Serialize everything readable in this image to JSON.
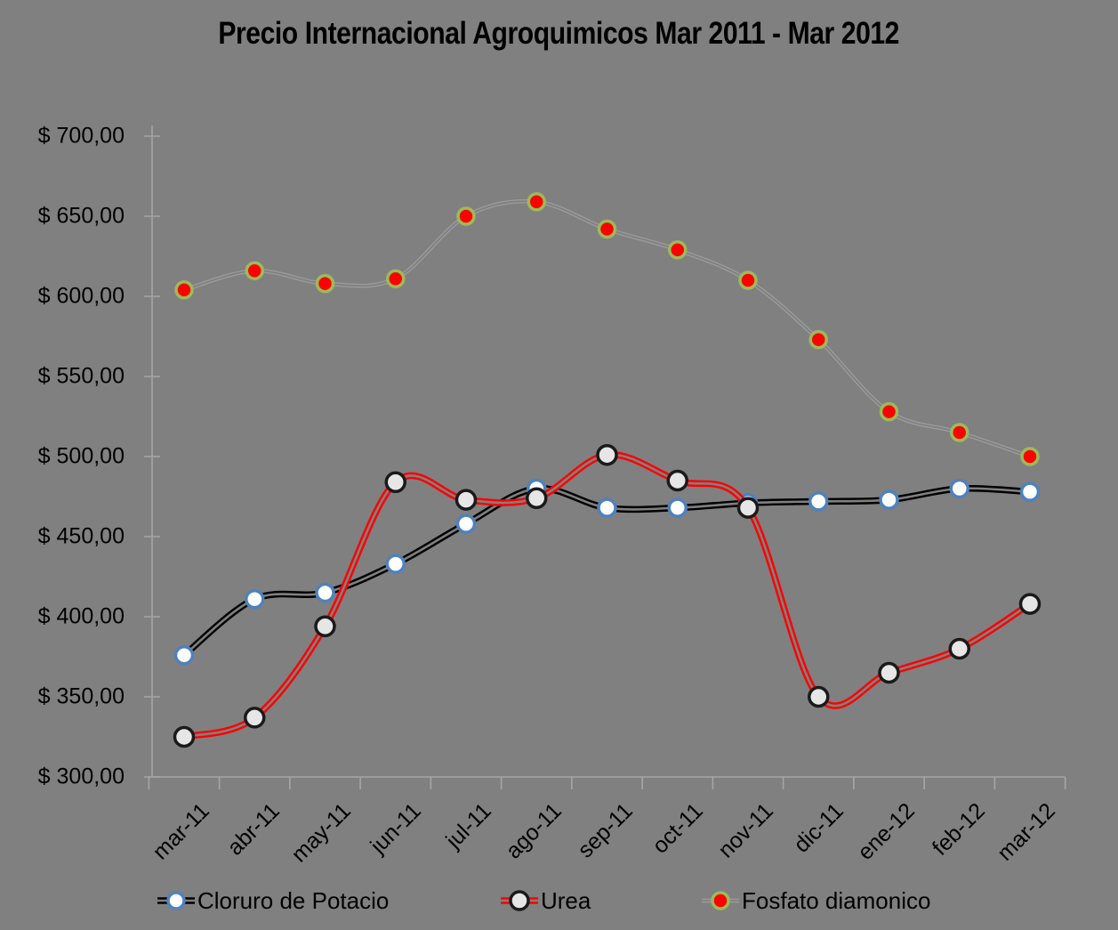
{
  "title": "Precio Internacional Agroquimicos Mar 2011 - Mar 2012",
  "colors": {
    "background": "#808080",
    "axis": "#a6a6a6",
    "title_text": "#000000"
  },
  "chart_data": {
    "type": "line",
    "title": "Precio Internacional Agroquimicos Mar 2011 - Mar 2012",
    "categories": [
      "mar-11",
      "abr-11",
      "may-11",
      "jun-11",
      "jul-11",
      "ago-11",
      "sep-11",
      "oct-11",
      "nov-11",
      "dic-11",
      "ene-12",
      "feb-12",
      "mar-12"
    ],
    "series": [
      {
        "name": "Cloruro de Potacio",
        "values": [
          376,
          411,
          415,
          433,
          458,
          480,
          468,
          468,
          471,
          472,
          473,
          480,
          478
        ],
        "line_color": "#000000",
        "line_style": "double",
        "marker_fill": "#ffffff",
        "marker_ring": "#4f81bd"
      },
      {
        "name": "Urea",
        "values": [
          325,
          337,
          394,
          484,
          473,
          474,
          501,
          485,
          468,
          350,
          365,
          380,
          408
        ],
        "line_color": "#fe0000",
        "line_style": "double",
        "marker_fill": "#e6e6e6",
        "marker_ring": "#1a1a1a"
      },
      {
        "name": "Fosfato diamonico",
        "values": [
          604,
          616,
          608,
          611,
          650,
          659,
          642,
          629,
          610,
          573,
          528,
          515,
          500
        ],
        "line_color": "#9b9b9b",
        "line_style": "faint",
        "marker_fill": "#fe0000",
        "marker_ring": "#9bbb59"
      }
    ],
    "xlabel": "",
    "ylabel": "",
    "ylim": [
      300,
      700
    ],
    "ytick_step": 50,
    "ytick_labels": [
      "$ 700,00",
      "$ 650,00",
      "$ 600,00",
      "$ 550,00",
      "$ 500,00",
      "$ 450,00",
      "$ 400,00",
      "$ 350,00",
      "$ 300,00"
    ],
    "grid": false,
    "legend_position": "bottom",
    "line_smoothing": true
  }
}
